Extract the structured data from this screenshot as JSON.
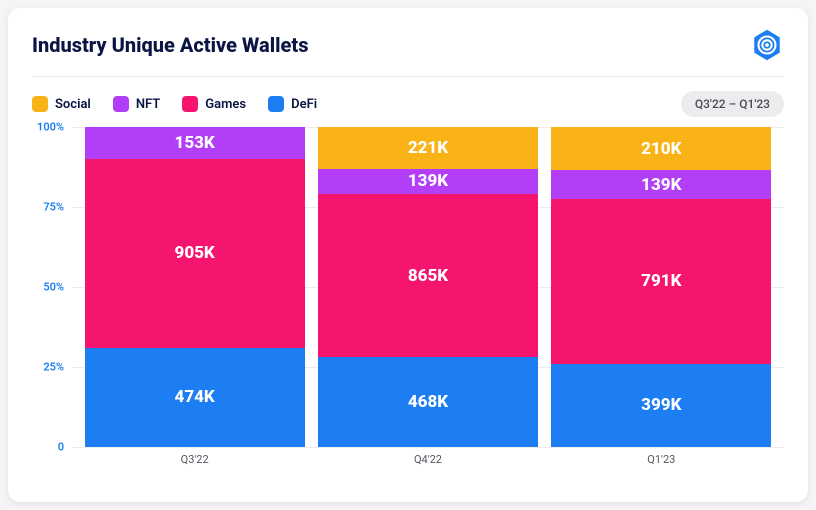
{
  "title": "Industry Unique Active Wallets",
  "range_label": "Q3'22 – Q1'23",
  "watermark": "DappRadar",
  "colors": {
    "social": "#f9b316",
    "nft": "#b33ef7",
    "games": "#f5146e",
    "defi": "#1c7ef2",
    "y_tick": "#1c7ef2",
    "grid": "#ececec",
    "bg": "#ffffff"
  },
  "legend": [
    {
      "key": "social",
      "label": "Social"
    },
    {
      "key": "nft",
      "label": "NFT"
    },
    {
      "key": "games",
      "label": "Games"
    },
    {
      "key": "defi",
      "label": "DeFi"
    }
  ],
  "y_axis": {
    "ticks": [
      {
        "pct": 0,
        "label": "0"
      },
      {
        "pct": 25,
        "label": "25%"
      },
      {
        "pct": 50,
        "label": "50%"
      },
      {
        "pct": 75,
        "label": "75%"
      },
      {
        "pct": 100,
        "label": "100%"
      }
    ]
  },
  "chart": {
    "type": "stacked-bar-100",
    "categories": [
      "Q3'22",
      "Q4'22",
      "Q1'23"
    ],
    "series_order_top_to_bottom": [
      "social",
      "nft",
      "games",
      "defi"
    ],
    "bars": [
      {
        "category": "Q3'22",
        "segments": [
          {
            "series": "social",
            "label": "",
            "pct": 0
          },
          {
            "series": "nft",
            "label": "153K",
            "pct": 10
          },
          {
            "series": "games",
            "label": "905K",
            "pct": 59
          },
          {
            "series": "defi",
            "label": "474K",
            "pct": 31
          }
        ]
      },
      {
        "category": "Q4'22",
        "segments": [
          {
            "series": "social",
            "label": "221K",
            "pct": 13
          },
          {
            "series": "nft",
            "label": "139K",
            "pct": 8
          },
          {
            "series": "games",
            "label": "865K",
            "pct": 51
          },
          {
            "series": "defi",
            "label": "468K",
            "pct": 28
          }
        ]
      },
      {
        "category": "Q1'23",
        "segments": [
          {
            "series": "social",
            "label": "210K",
            "pct": 13.5
          },
          {
            "series": "nft",
            "label": "139K",
            "pct": 9
          },
          {
            "series": "games",
            "label": "791K",
            "pct": 51.5
          },
          {
            "series": "defi",
            "label": "399K",
            "pct": 26
          }
        ]
      }
    ]
  }
}
